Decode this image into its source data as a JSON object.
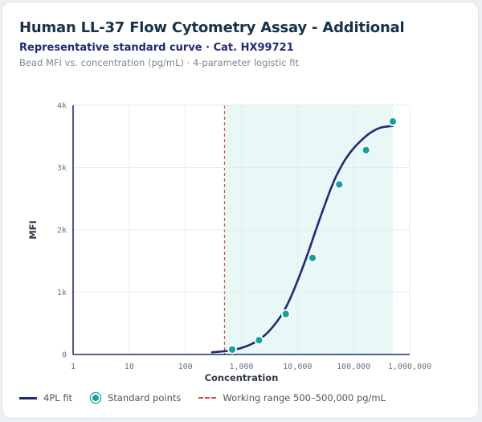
{
  "header": {
    "title": "Human LL-37 Flow Cytometry Assay - Additional",
    "subtitle": "Representative standard curve · Cat. HX99721",
    "caption": "Bead MFI vs. concentration (pg/mL) · 4-parameter logistic fit"
  },
  "chart_data": {
    "type": "scatter",
    "xlabel": "Concentration",
    "ylabel": "MFI",
    "x_scale": "log",
    "xlim": [
      1,
      1000000
    ],
    "ylim": [
      0,
      4000
    ],
    "x_ticks": [
      1,
      10,
      100,
      1000,
      10000,
      100000,
      1000000
    ],
    "x_tick_labels": [
      "1",
      "10",
      "100",
      "1,000",
      "10,000",
      "100,000",
      "1,000,000"
    ],
    "y_ticks": [
      0,
      1000,
      2000,
      3000,
      4000
    ],
    "y_tick_labels": [
      "0",
      "1k",
      "2k",
      "3k",
      "4k"
    ],
    "grid": true,
    "series": [
      {
        "name": "4PL fit",
        "kind": "line",
        "color": "#1f2a78",
        "x": [
          300,
          500,
          700,
          1000,
          1500,
          2000,
          3000,
          5000,
          7000,
          10000,
          15000,
          20000,
          30000,
          40000,
          50000,
          70000,
          100000,
          150000,
          200000,
          300000,
          500000
        ],
        "y": [
          35,
          52,
          72,
          105,
          165,
          230,
          360,
          610,
          850,
          1180,
          1600,
          1930,
          2380,
          2680,
          2880,
          3120,
          3310,
          3470,
          3560,
          3640,
          3670
        ]
      },
      {
        "name": "Standard points",
        "kind": "scatter",
        "color": "#12a39a",
        "x": [
          686,
          2058,
          6173,
          18519,
          55556,
          166667,
          500000
        ],
        "y": [
          80,
          230,
          650,
          1550,
          2730,
          3280,
          3740
        ]
      }
    ],
    "working_range": {
      "label": "Working range 500–500,000 pg/mL",
      "lower": 500,
      "upper": 500000,
      "line_color": "#d9534f",
      "fill_color": "#eaf7f7"
    },
    "legend_position": "bottom-left"
  }
}
